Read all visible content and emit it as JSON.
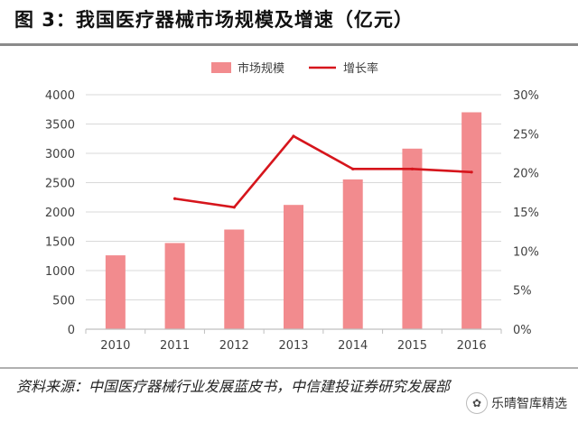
{
  "header": {
    "title": "图 3：我国医疗器械市场规模及增速（亿元）"
  },
  "source": {
    "text": "资料来源：中国医疗器械行业发展蓝皮书，中信建投证券研究发展部"
  },
  "watermark": {
    "text": "乐晴智库精选"
  },
  "colors": {
    "bar": "#f28b8e",
    "line": "#d6151c",
    "grid": "#d9d9d9",
    "axis": "#bfbfbf",
    "tick_text": "#404040"
  },
  "chart_data": {
    "type": "bar",
    "categories": [
      "2010",
      "2011",
      "2012",
      "2013",
      "2014",
      "2015",
      "2016"
    ],
    "series": [
      {
        "name": "市场规模",
        "type": "bar",
        "axis": "left",
        "values": [
          1260,
          1470,
          1700,
          2120,
          2555,
          3080,
          3700
        ]
      },
      {
        "name": "增长率",
        "type": "line",
        "axis": "right",
        "values": [
          null,
          16.7,
          15.6,
          24.7,
          20.5,
          20.5,
          20.1
        ]
      }
    ],
    "ylim": [
      0,
      4000
    ],
    "yticks": [
      "0",
      "500",
      "1000",
      "1500",
      "2000",
      "2500",
      "3000",
      "3500",
      "4000"
    ],
    "y2lim": [
      0,
      30
    ],
    "y2ticks": [
      "0%",
      "5%",
      "10%",
      "15%",
      "20%",
      "25%",
      "30%"
    ],
    "legend": {
      "position": "top-center",
      "entries": [
        "市场规模",
        "增长率"
      ]
    },
    "grid": true
  }
}
